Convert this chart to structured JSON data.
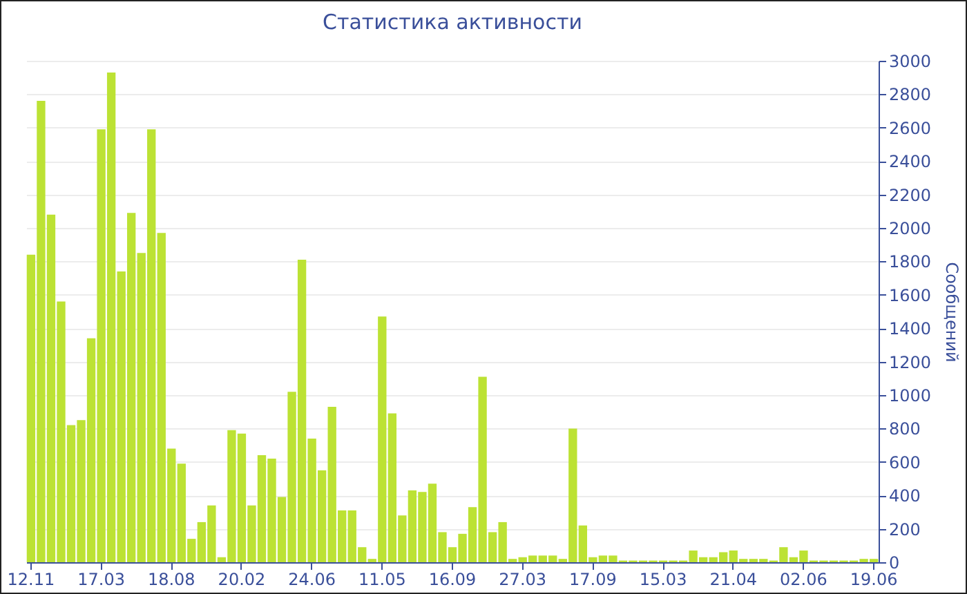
{
  "chart_data": {
    "type": "bar",
    "title": "Статистика активности",
    "ylabel": "Сообщений",
    "color": "#bce234",
    "categories": [
      "12.11",
      null,
      null,
      null,
      null,
      null,
      null,
      "17.03",
      null,
      null,
      null,
      null,
      null,
      null,
      "18.08",
      null,
      null,
      null,
      null,
      null,
      null,
      "20.02",
      null,
      null,
      null,
      null,
      null,
      null,
      "24.06",
      null,
      null,
      null,
      null,
      null,
      null,
      "11.05",
      null,
      null,
      null,
      null,
      null,
      null,
      "16.09",
      null,
      null,
      null,
      null,
      null,
      null,
      "27.03",
      null,
      null,
      null,
      null,
      null,
      null,
      "17.09",
      null,
      null,
      null,
      null,
      null,
      null,
      "15.03",
      null,
      null,
      null,
      null,
      null,
      null,
      "21.04",
      null,
      null,
      null,
      null,
      null,
      null,
      "02.06",
      null,
      null,
      null,
      null,
      null,
      null,
      "19.06"
    ],
    "values": [
      1840,
      2760,
      2080,
      1560,
      820,
      850,
      1340,
      2590,
      2930,
      1740,
      2090,
      1850,
      2590,
      1970,
      680,
      590,
      140,
      240,
      340,
      30,
      790,
      770,
      340,
      640,
      620,
      390,
      1020,
      1810,
      740,
      550,
      930,
      310,
      310,
      90,
      20,
      1470,
      890,
      280,
      430,
      420,
      470,
      180,
      90,
      170,
      330,
      1110,
      180,
      240,
      20,
      30,
      40,
      40,
      40,
      20,
      800,
      220,
      30,
      40,
      40,
      10,
      10,
      10,
      10,
      10,
      10,
      10,
      70,
      30,
      30,
      60,
      70,
      20,
      20,
      20,
      10,
      90,
      30,
      70,
      10,
      10,
      10,
      10,
      10,
      20,
      20
    ],
    "ylim": [
      0,
      3000
    ],
    "yticks": [
      0,
      200,
      400,
      600,
      800,
      1000,
      1200,
      1400,
      1600,
      1800,
      2000,
      2200,
      2400,
      2600,
      2800,
      3000
    ],
    "grid": "y"
  }
}
